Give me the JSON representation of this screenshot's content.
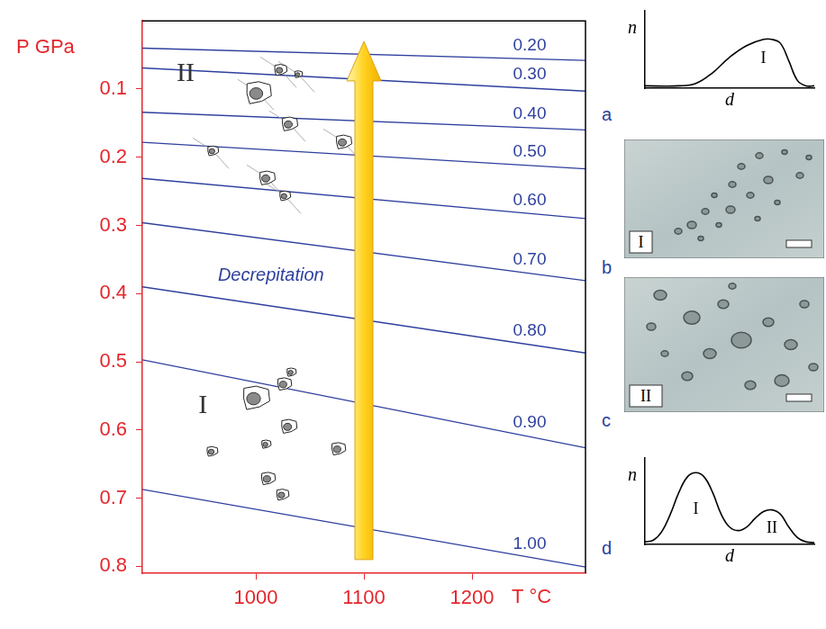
{
  "chart_data": [
    {
      "type": "line",
      "xlabel": "T °C",
      "ylabel": "P GPa",
      "x": [
        895,
        1305
      ],
      "xlim": [
        895,
        1305
      ],
      "xticks": [
        1000,
        1100,
        1200
      ],
      "ylim": [
        0.81,
        0.0
      ],
      "yticks": [
        0.1,
        0.2,
        0.3,
        0.4,
        0.5,
        0.6,
        0.7,
        0.8
      ],
      "grid": false,
      "series": [
        {
          "name": "0.20",
          "color": "#2e3f9e",
          "values": [
            0.04,
            0.058
          ]
        },
        {
          "name": "0.30",
          "color": "#2e3f9e",
          "values": [
            0.069,
            0.103
          ]
        },
        {
          "name": "0.40",
          "color": "#2e3f9e",
          "values": [
            0.134,
            0.16
          ]
        },
        {
          "name": "0.50",
          "color": "#2e3f9e",
          "values": [
            0.178,
            0.217
          ]
        },
        {
          "name": "0.60",
          "color": "#2e3f9e",
          "values": [
            0.231,
            0.29
          ]
        },
        {
          "name": "0.70",
          "color": "#2e3f9e",
          "values": [
            0.296,
            0.381
          ]
        },
        {
          "name": "0.80",
          "color": "#2e3f9e",
          "values": [
            0.39,
            0.487
          ]
        },
        {
          "name": "0.90",
          "color": "#2e3f9e",
          "values": [
            0.497,
            0.626
          ]
        },
        {
          "name": "1.00",
          "color": "#2e3f9e",
          "values": [
            0.687,
            0.801
          ]
        }
      ],
      "annotations": [
        {
          "text": "Decrepitation",
          "x": 1014,
          "y": 0.374
        }
      ],
      "groups": [
        {
          "label": "I",
          "x": 951,
          "y": 0.565
        },
        {
          "label": "II",
          "x": 935,
          "y": 0.078
        }
      ],
      "arrow": {
        "x": 1100,
        "from": 0.79,
        "to": 0.03,
        "color": "#ffd21f"
      }
    },
    {
      "type": "line",
      "panel": "a",
      "xlabel": "d",
      "ylabel": "n",
      "x": [
        0,
        2,
        3,
        4,
        5,
        6,
        7,
        7.5,
        8,
        8.5,
        9,
        9.5,
        10
      ],
      "xlim": [
        0,
        10
      ],
      "ylim": [
        0,
        10
      ],
      "tick_labels": false,
      "series": [
        {
          "color": "#000000",
          "values": [
            0.3,
            0.3,
            0.6,
            2,
            4,
            5.5,
            6.3,
            6.3,
            5.8,
            3.5,
            1,
            0.3,
            0.3
          ]
        }
      ],
      "annotations": [
        {
          "text": "I",
          "x": 7,
          "y": 3.8
        }
      ]
    },
    {
      "type": "line",
      "panel": "d",
      "xlabel": "d",
      "ylabel": "n",
      "x": [
        0,
        0.5,
        1,
        1.5,
        2,
        2.5,
        3,
        3.5,
        4,
        4.5,
        5,
        5.5,
        6,
        6.5,
        7,
        7.5,
        8,
        8.5,
        9,
        9.5,
        10
      ],
      "xlim": [
        0,
        10
      ],
      "ylim": [
        0,
        10
      ],
      "tick_labels": false,
      "series": [
        {
          "color": "#000000",
          "values": [
            0.3,
            0.5,
            1.5,
            3.5,
            6,
            7.8,
            8.3,
            7.8,
            6,
            3.5,
            2,
            1.6,
            2,
            3,
            3.8,
            4,
            3.5,
            2,
            0.8,
            0.3,
            0.2
          ]
        }
      ],
      "annotations": [
        {
          "text": "I",
          "x": 3,
          "y": 4
        },
        {
          "text": "II",
          "x": 7.5,
          "y": 1.8
        }
      ]
    }
  ],
  "photos": [
    {
      "panel": "b",
      "label": "I"
    },
    {
      "panel": "c",
      "label": "II"
    }
  ]
}
